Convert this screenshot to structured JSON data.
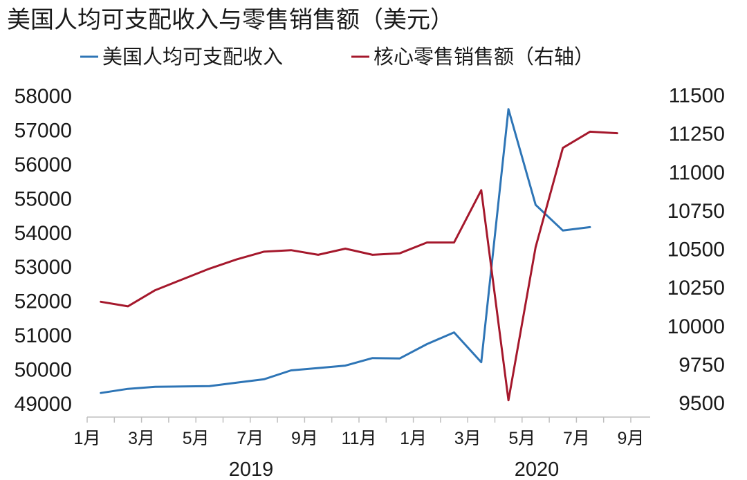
{
  "chart_data": {
    "type": "line",
    "title": "美国人均可支配收入与零售销售额（美元）",
    "x": [
      "2019-01",
      "2019-02",
      "2019-03",
      "2019-04",
      "2019-05",
      "2019-06",
      "2019-07",
      "2019-08",
      "2019-09",
      "2019-10",
      "2019-11",
      "2019-12",
      "2020-01",
      "2020-02",
      "2020-03",
      "2020-04",
      "2020-05",
      "2020-06",
      "2020-07",
      "2020-08"
    ],
    "x_tick_labels": [
      "1月",
      "3月",
      "5月",
      "7月",
      "9月",
      "11月",
      "1月",
      "3月",
      "5月",
      "7月",
      "9月"
    ],
    "year_labels": [
      "2019",
      "2020"
    ],
    "y_left": {
      "ticks": [
        "58000",
        "57000",
        "56000",
        "55000",
        "54000",
        "53000",
        "52000",
        "51000",
        "50000",
        "49000"
      ],
      "range": [
        48500,
        58500
      ]
    },
    "y_right": {
      "ticks": [
        "11500",
        "11250",
        "11000",
        "10750",
        "10500",
        "10250",
        "10000",
        "9750",
        "9500"
      ],
      "range": [
        9400,
        11590
      ]
    },
    "series": [
      {
        "name": "美国人均可支配收入",
        "axis": "left",
        "color": "#2e75b6",
        "values": [
          49300,
          49420,
          49480,
          49490,
          49500,
          49600,
          49700,
          49960,
          50030,
          50100,
          50320,
          50310,
          50730,
          51070,
          50200,
          57600,
          54800,
          54050,
          54150,
          null
        ]
      },
      {
        "name": "核心零售销售额（右轴）",
        "axis": "right",
        "color": "#a5182c",
        "values": [
          10155,
          10125,
          10230,
          10300,
          10370,
          10430,
          10480,
          10490,
          10460,
          10500,
          10460,
          10470,
          10540,
          10540,
          10880,
          9515,
          10510,
          11155,
          11260,
          11250
        ]
      }
    ],
    "grid": false,
    "legend_position": "top"
  }
}
